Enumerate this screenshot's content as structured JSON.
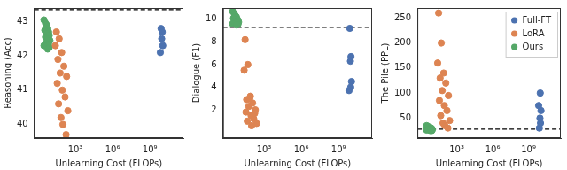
{
  "chart_data": [
    {
      "type": "scatter",
      "y_label": "Reasoning (Acc)",
      "x_label": "Unlearning Cost (FLOPs)",
      "log": "x",
      "grid": false,
      "marker": "circle",
      "xlim": [
        0.5,
        500000000000
      ],
      "xticks": [
        {
          "value": 1000,
          "label": "10³"
        },
        {
          "value": 1000000,
          "label": "10⁶"
        },
        {
          "value": 1000000000,
          "label": "10⁹"
        }
      ],
      "ylim": [
        39.6,
        43.4
      ],
      "yticks": [
        40,
        41,
        42,
        43
      ],
      "baseline": 43.35,
      "series": [
        {
          "name": "Full-FT",
          "color": "#4c72b0",
          "x": [
            8000000000,
            10000000000,
            9000000000,
            11000000000,
            7000000000
          ],
          "values": [
            42.8,
            42.7,
            42.5,
            42.3,
            42.1
          ]
        },
        {
          "name": "LoRA",
          "color": "#dd8452",
          "x": [
            30,
            50,
            25,
            80,
            40,
            120,
            60,
            200,
            35,
            90,
            150,
            45,
            250,
            70,
            100,
            180
          ],
          "values": [
            42.7,
            42.5,
            42.3,
            42.1,
            41.9,
            41.7,
            41.5,
            41.4,
            41.2,
            41.0,
            40.8,
            40.6,
            40.4,
            40.2,
            40.0,
            39.7
          ]
        },
        {
          "name": "Ours",
          "color": "#55a868",
          "x": [
            3,
            4,
            5,
            6,
            3.5,
            7,
            5,
            8,
            4,
            6,
            9,
            5,
            7,
            3,
            8,
            6
          ],
          "values": [
            43.05,
            42.95,
            42.9,
            42.8,
            42.75,
            42.7,
            42.65,
            42.6,
            42.55,
            42.5,
            42.45,
            42.4,
            42.35,
            42.3,
            42.25,
            42.2
          ]
        }
      ]
    },
    {
      "type": "scatter",
      "y_label": "Dialogue (F1)",
      "x_label": "Unlearning Cost (FLOPs)",
      "log": "x",
      "grid": false,
      "marker": "circle",
      "xlim": [
        0.5,
        500000000000
      ],
      "xticks": [
        {
          "value": 1000,
          "label": "10³"
        },
        {
          "value": 1000000,
          "label": "10⁶"
        },
        {
          "value": 1000000000,
          "label": "10⁹"
        }
      ],
      "ylim": [
        -0.5,
        11
      ],
      "yticks": [
        2,
        4,
        6,
        8,
        10
      ],
      "baseline": 9.3,
      "series": [
        {
          "name": "Full-FT",
          "color": "#4c72b0",
          "x": [
            8000000000,
            10000000000,
            9000000000,
            11000000000,
            7000000000,
            9500000000
          ],
          "values": [
            9.2,
            6.7,
            6.3,
            4.5,
            3.7,
            4.0
          ]
        },
        {
          "name": "LoRA",
          "color": "#dd8452",
          "x": [
            30,
            50,
            25,
            80,
            40,
            120,
            60,
            200,
            35,
            90,
            150,
            45,
            250,
            70,
            100,
            180
          ],
          "values": [
            8.2,
            6.0,
            5.5,
            3.2,
            2.9,
            2.6,
            2.3,
            2.0,
            1.8,
            1.5,
            1.2,
            1.0,
            0.8,
            3.0,
            0.6,
            1.7
          ]
        },
        {
          "name": "Ours",
          "color": "#55a868",
          "x": [
            3,
            4,
            5,
            6,
            3.5,
            7,
            5,
            8,
            4,
            6,
            9,
            5,
            7,
            3,
            8,
            6
          ],
          "values": [
            10.7,
            10.5,
            10.3,
            10.2,
            10.1,
            10.0,
            9.95,
            9.9,
            9.85,
            9.8,
            9.75,
            9.7,
            9.65,
            9.6,
            9.55,
            9.5
          ]
        }
      ]
    },
    {
      "type": "scatter",
      "y_label": "The Pile (PPL)",
      "x_label": "Unlearning Cost (FLOPs)",
      "log": "x",
      "grid": false,
      "marker": "circle",
      "legend": "upper right",
      "xlim": [
        0.5,
        500000000000
      ],
      "xticks": [
        {
          "value": 1000,
          "label": "10³"
        },
        {
          "value": 1000000,
          "label": "10⁶"
        },
        {
          "value": 1000000000,
          "label": "10⁹"
        }
      ],
      "ylim": [
        10,
        270
      ],
      "yticks": [
        50,
        100,
        150,
        200,
        250
      ],
      "baseline": 28,
      "series": [
        {
          "name": "Full-FT",
          "color": "#4c72b0",
          "x": [
            8000000000,
            10000000000,
            9000000000,
            11000000000,
            7000000000,
            9500000000
          ],
          "values": [
            30,
            40,
            50,
            65,
            75,
            100
          ]
        },
        {
          "name": "LoRA",
          "color": "#dd8452",
          "x": [
            30,
            50,
            25,
            80,
            40,
            120,
            60,
            200,
            35,
            90,
            150,
            45,
            250,
            70,
            100,
            180
          ],
          "values": [
            260,
            200,
            160,
            140,
            130,
            120,
            105,
            95,
            85,
            75,
            65,
            55,
            45,
            40,
            35,
            30
          ]
        },
        {
          "name": "Ours",
          "color": "#55a868",
          "x": [
            3,
            4,
            5,
            6,
            3.5,
            7,
            5,
            8,
            4,
            6,
            9,
            5,
            7,
            3,
            8,
            6
          ],
          "values": [
            35,
            33,
            32,
            31,
            30,
            30,
            29,
            29,
            28,
            28,
            27,
            27,
            26,
            26,
            25,
            25
          ]
        }
      ]
    }
  ]
}
